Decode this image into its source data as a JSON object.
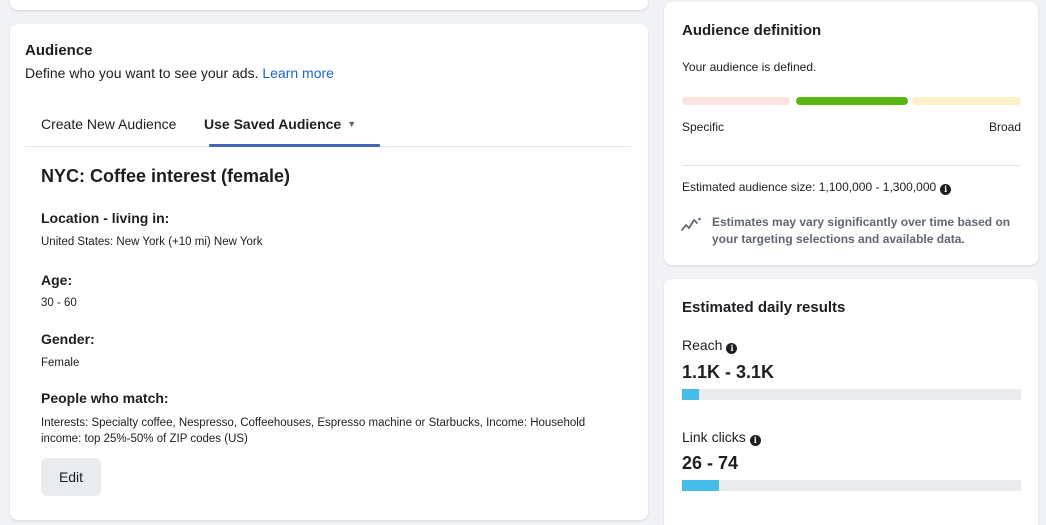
{
  "audience": {
    "title": "Audience",
    "subtitle": "Define who you want to see your ads.",
    "learn_more": "Learn more",
    "tabs": [
      {
        "label": "Create New Audience",
        "active": false
      },
      {
        "label": "Use Saved Audience",
        "active": true
      }
    ],
    "saved_name": "NYC: Coffee interest (female)",
    "fields": [
      {
        "label": "Location - living in:",
        "value": "United States: New York (+10 mi) New York"
      },
      {
        "label": "Age:",
        "value": "30 - 60"
      },
      {
        "label": "Gender:",
        "value": "Female"
      },
      {
        "label": "People who match:",
        "value": "Interests: Specialty coffee, Nespresso, Coffeehouses, Espresso machine or Starbucks, Income: Household income: top 25%-50% of ZIP codes (US)"
      }
    ],
    "edit_label": "Edit"
  },
  "definition": {
    "title": "Audience definition",
    "status": "Your audience is defined.",
    "meter_left_label": "Specific",
    "meter_right_label": "Broad",
    "meter_position": "middle",
    "size_text": "Estimated audience size: 1,100,000 - 1,300,000",
    "estimate_note": "Estimates may vary significantly over time based on your targeting selections and available data."
  },
  "daily": {
    "title": "Estimated daily results",
    "metrics": [
      {
        "label": "Reach",
        "value": "1.1K - 3.1K",
        "fill_fraction": 0.05
      },
      {
        "label": "Link clicks",
        "value": "26 - 74",
        "fill_fraction": 0.11
      }
    ]
  },
  "colors": {
    "link": "#1a63d6",
    "tab_underline": "#4267b2",
    "meter_active": "#5ab513",
    "meter_specific": "#fbe3df",
    "meter_broad": "#fdf1c8",
    "metric_fill": "#45bde8"
  }
}
